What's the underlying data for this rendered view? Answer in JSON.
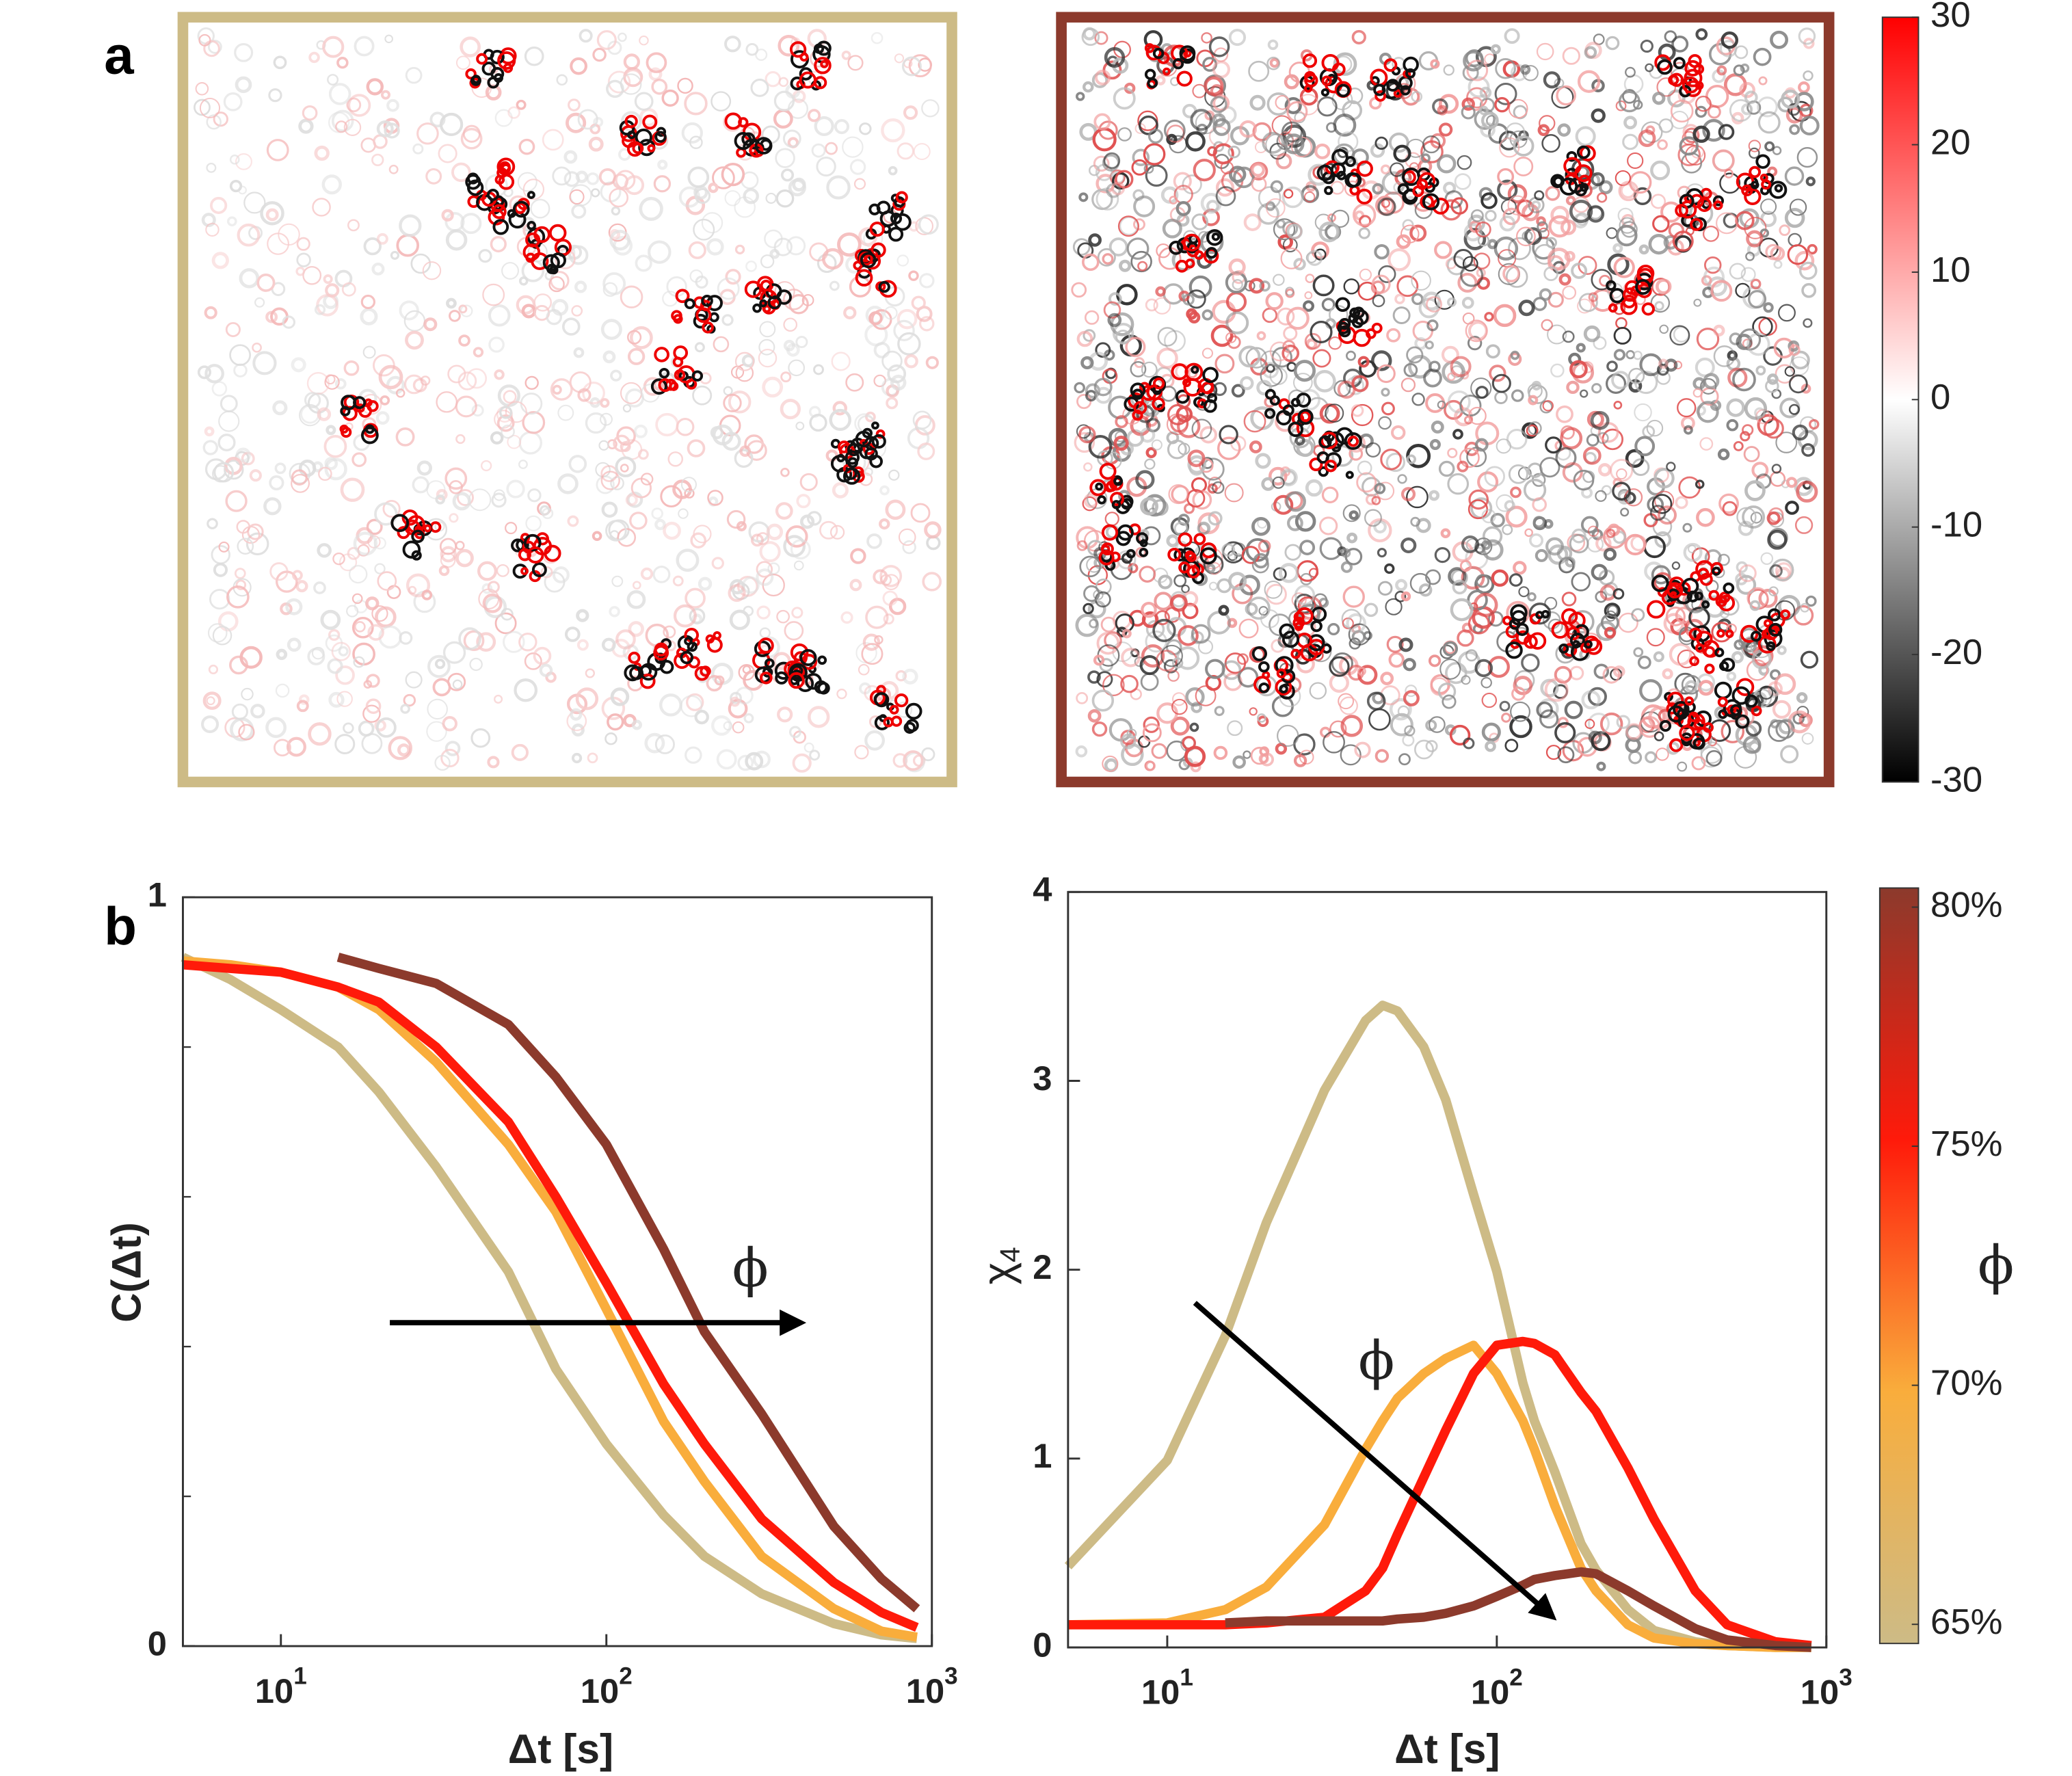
{
  "panel_labels": [
    "a",
    "b"
  ],
  "chart_data": [
    {
      "type": "maps",
      "panels": [
        {
          "border_color": "#cdbb86"
        },
        {
          "border_color": "#8c3a2c"
        }
      ],
      "colorbar": {
        "clim": [
          -30,
          30
        ],
        "ticks": [
          30,
          20,
          10,
          0,
          -10,
          -20,
          -30
        ],
        "colors": [
          "#000000",
          "#ffffff",
          "#ff0000"
        ]
      }
    },
    {
      "type": "line",
      "x_label": "Δt [s]",
      "y_label": "C(Δt)",
      "annotation": "ϕ",
      "log_x": true,
      "xlim": [
        5,
        1000
      ],
      "xticks": [
        {
          "value": 10,
          "label": "10",
          "exponent": "1"
        },
        {
          "value": 100,
          "label": "10",
          "exponent": "2"
        },
        {
          "value": 1000,
          "label": "10",
          "exponent": "3"
        }
      ],
      "ylim": [
        0,
        1
      ],
      "yticks": [
        0,
        1
      ],
      "minor_yticks": [
        0.2,
        0.4,
        0.6,
        0.8
      ],
      "x": [
        5,
        7,
        10,
        15,
        20,
        30,
        50,
        70,
        100,
        150,
        200,
        300,
        500,
        700,
        900
      ],
      "series": [
        {
          "color": "#cdbb86",
          "values": [
            0.92,
            0.89,
            0.85,
            0.8,
            0.74,
            0.64,
            0.5,
            0.37,
            0.27,
            0.175,
            0.12,
            0.07,
            0.03,
            0.015,
            0.01
          ]
        },
        {
          "color": "#f9ad3c",
          "values": [
            0.915,
            0.91,
            0.9,
            0.88,
            0.85,
            0.78,
            0.67,
            0.58,
            0.45,
            0.3,
            0.22,
            0.12,
            0.05,
            0.02,
            0.012
          ]
        },
        {
          "color": "#ff1a0a",
          "values": [
            0.91,
            0.905,
            0.9,
            0.88,
            0.86,
            0.8,
            0.7,
            0.6,
            0.485,
            0.35,
            0.27,
            0.17,
            0.085,
            0.045,
            0.025
          ]
        },
        {
          "color": "#8c3a2c",
          "values": [
            null,
            null,
            null,
            0.92,
            0.905,
            0.885,
            0.83,
            0.76,
            0.67,
            0.53,
            0.42,
            0.31,
            0.16,
            0.09,
            0.05
          ]
        }
      ]
    },
    {
      "type": "line",
      "x_label": "Δt [s]",
      "y_label": {
        "text": "χ",
        "sub": "4"
      },
      "annotation": "ϕ",
      "log_x": true,
      "xlim": [
        5,
        1000
      ],
      "xticks": [
        {
          "value": 10,
          "label": "10",
          "exponent": "1"
        },
        {
          "value": 100,
          "label": "10",
          "exponent": "2"
        },
        {
          "value": 1000,
          "label": "10",
          "exponent": "3"
        }
      ],
      "ylim": [
        0,
        4
      ],
      "yticks": [
        0,
        1,
        2,
        3,
        4
      ],
      "x": [
        5,
        10,
        15,
        20,
        30,
        40,
        45,
        50,
        60,
        70,
        85,
        100,
        120,
        130,
        150,
        180,
        200,
        250,
        300,
        400,
        500,
        700,
        900
      ],
      "series": [
        {
          "color": "#cdbb86",
          "values": [
            0.43,
            0.99,
            1.65,
            2.25,
            2.95,
            3.32,
            3.4,
            3.37,
            3.18,
            2.9,
            2.4,
            1.99,
            1.4,
            1.2,
            0.93,
            0.55,
            0.41,
            0.2,
            0.09,
            0.03,
            0.01,
            0,
            0
          ]
        },
        {
          "color": "#f9ad3c",
          "values": [
            0.12,
            0.13,
            0.2,
            0.32,
            0.65,
            1.05,
            1.2,
            1.32,
            1.45,
            1.53,
            1.6,
            1.45,
            1.2,
            1.05,
            0.75,
            0.42,
            0.3,
            0.12,
            0.05,
            0.02,
            0.01,
            0,
            0
          ]
        },
        {
          "color": "#ff1a0a",
          "values": [
            0.12,
            0.12,
            0.12,
            0.13,
            0.16,
            0.3,
            0.42,
            0.6,
            0.9,
            1.15,
            1.45,
            1.6,
            1.62,
            1.61,
            1.55,
            1.35,
            1.25,
            0.95,
            0.68,
            0.3,
            0.12,
            0.03,
            0.01
          ]
        },
        {
          "color": "#8c3a2c",
          "values": [
            null,
            null,
            0.13,
            0.14,
            0.14,
            0.14,
            0.14,
            0.15,
            0.16,
            0.18,
            0.22,
            0.27,
            0.33,
            0.36,
            0.38,
            0.4,
            0.39,
            0.3,
            0.22,
            0.1,
            0.04,
            0.01,
            0
          ]
        }
      ],
      "colorbar": {
        "label": "ϕ",
        "clim": [
          64.6,
          80.4
        ],
        "ticks": [
          {
            "value": 80,
            "label": "80%"
          },
          {
            "value": 75,
            "label": "75%"
          },
          {
            "value": 70,
            "label": "70%"
          },
          {
            "value": 65,
            "label": "65%"
          }
        ],
        "colors": [
          "#cdbb86",
          "#f9ad3c",
          "#ff1a0a",
          "#8c3a2c"
        ]
      }
    }
  ]
}
